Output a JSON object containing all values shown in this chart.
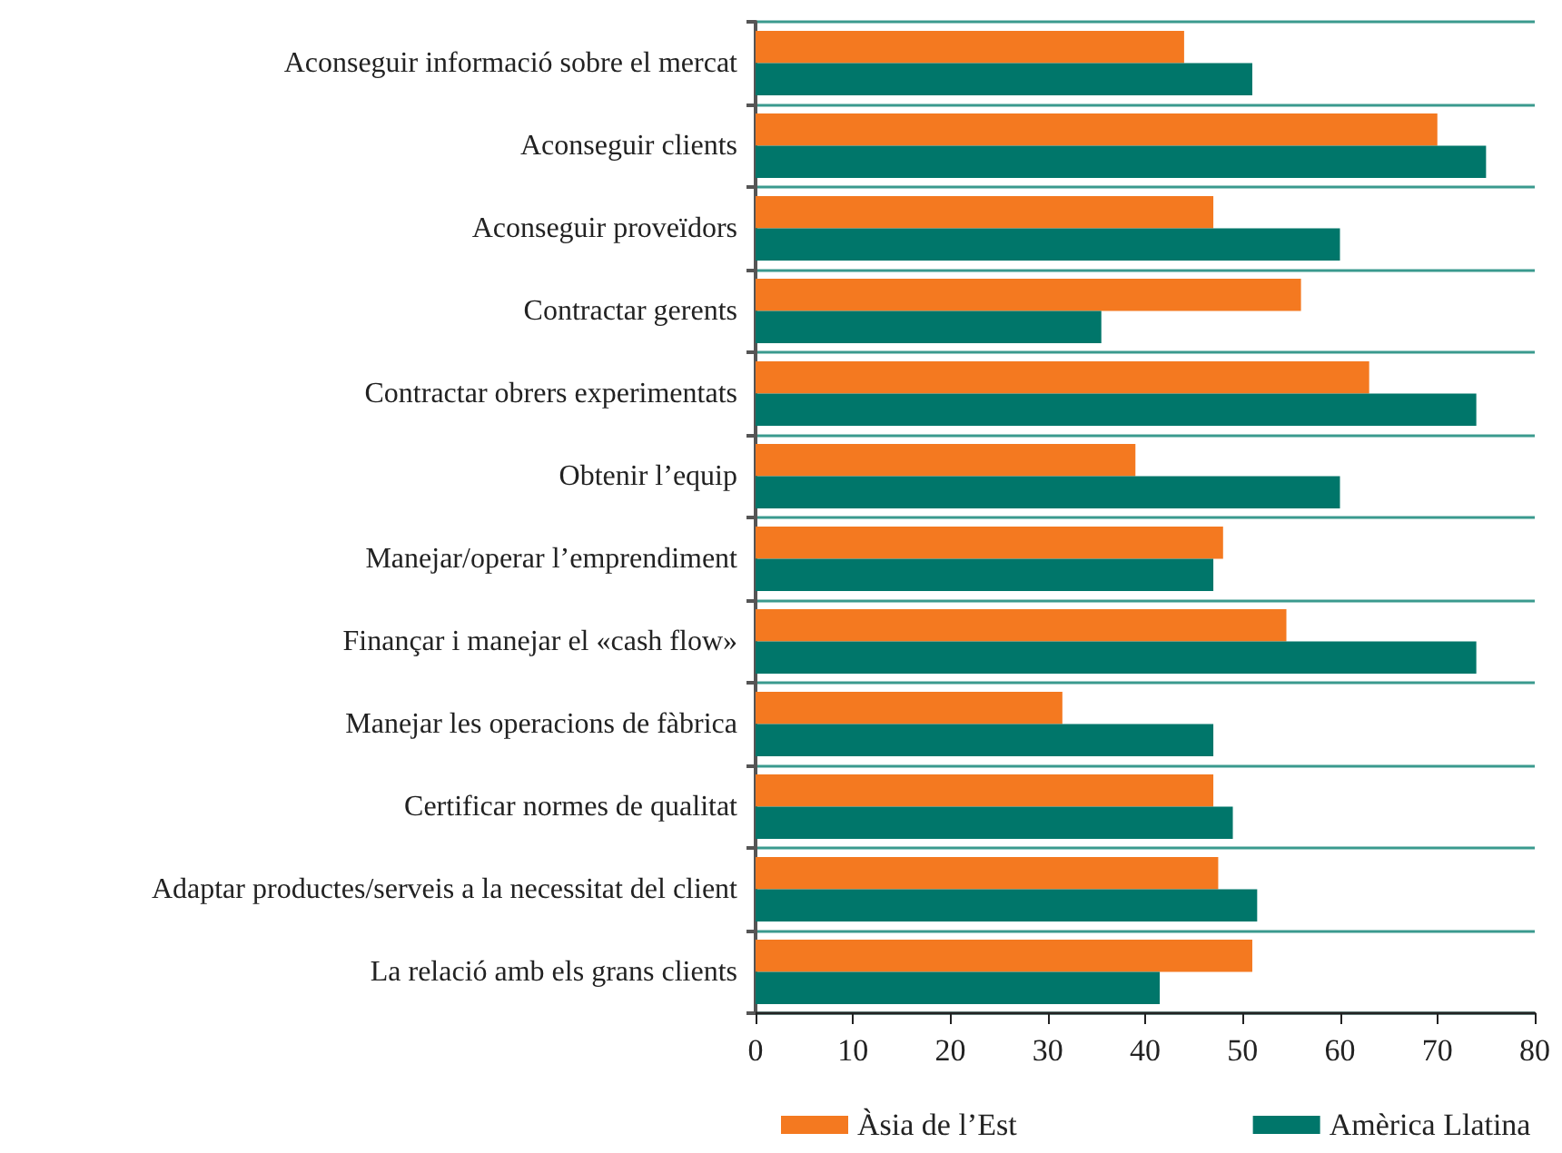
{
  "chart_data": {
    "type": "bar",
    "orientation": "horizontal",
    "categories": [
      "Aconseguir informació sobre el mercat",
      "Aconseguir clients",
      "Aconseguir proveïdors",
      "Contractar gerents",
      "Contractar obrers experimentats",
      "Obtenir l’equip",
      "Manejar/operar l’emprendiment",
      "Finançar i manejar el «cash flow»",
      "Manejar les operacions de fàbrica",
      "Certificar normes de qualitat",
      "Adaptar productes/serveis a la necessitat del client",
      "La relació amb els grans clients"
    ],
    "series": [
      {
        "name": "Àsia de l’Est",
        "color": "#f47920",
        "values": [
          44,
          70,
          47,
          56,
          63,
          39,
          48,
          54.5,
          31.5,
          47,
          47.5,
          51
        ]
      },
      {
        "name": "Amèrica Llatina",
        "color": "#00766a",
        "values": [
          51,
          75,
          60,
          35.5,
          74,
          60,
          47,
          74,
          47,
          49,
          51.5,
          41.5
        ]
      }
    ],
    "xlim": [
      0,
      80
    ],
    "xticks": [
      0,
      10,
      20,
      30,
      40,
      50,
      60,
      70,
      80
    ],
    "grid": "y",
    "legend": "bottom"
  }
}
